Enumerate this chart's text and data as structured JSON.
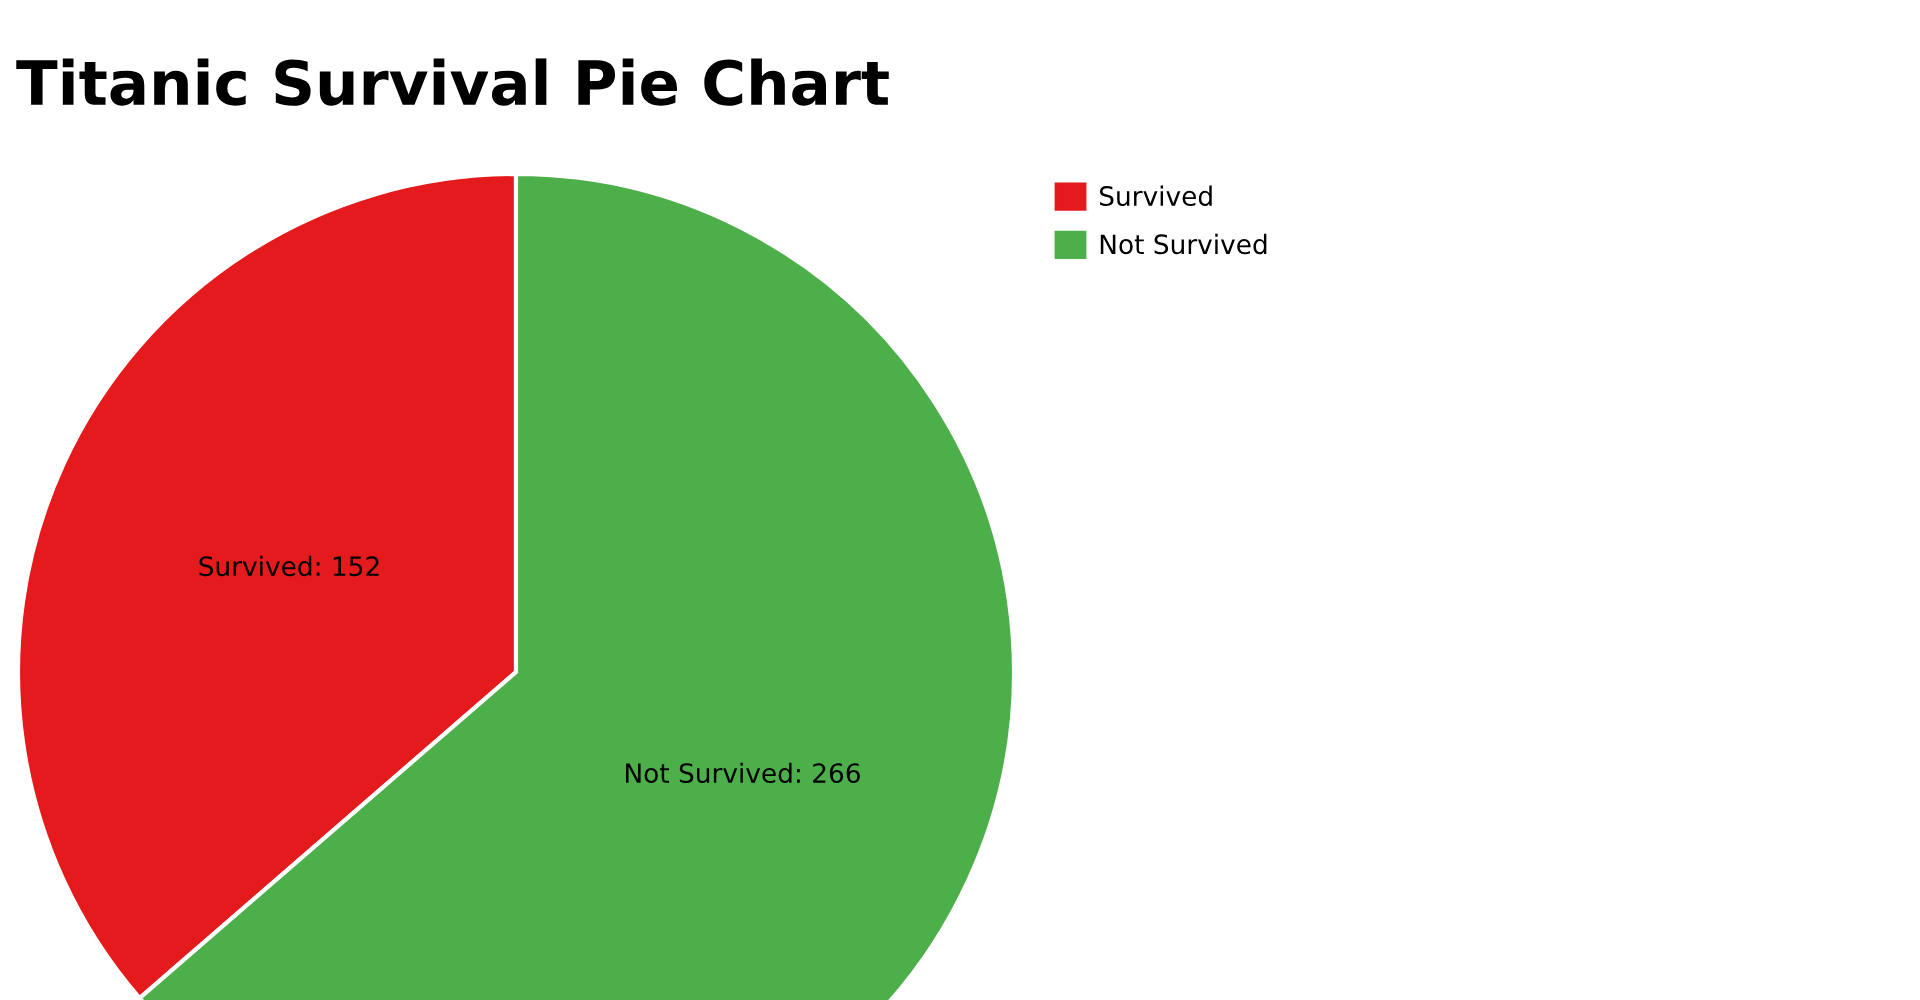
{
  "chart_data": {
    "type": "pie",
    "title": "Titanic Survival Pie Chart",
    "categories": [
      "Survived",
      "Not Survived"
    ],
    "values": [
      152,
      266
    ],
    "colors": [
      "#e41a1c",
      "#4daf4a"
    ],
    "value_labels": [
      "Survived: 152",
      "Not Survived: 266"
    ],
    "legend": "right"
  }
}
